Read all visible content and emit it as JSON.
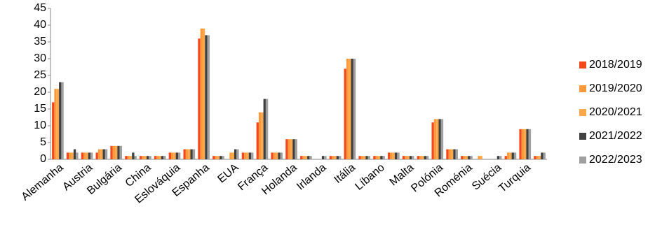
{
  "chart_data": {
    "type": "bar",
    "categories": [
      "Alemanha",
      null,
      "Austria",
      null,
      "Bulgária",
      null,
      "China",
      null,
      "Eslováquia",
      null,
      "Espanha",
      null,
      "EUA",
      null,
      "França",
      null,
      "Holanda",
      null,
      "Irlanda",
      null,
      "Itália",
      null,
      "Líbano",
      null,
      "Malta",
      null,
      "Polónia",
      null,
      "Roménia",
      null,
      "Suécia",
      null,
      "Turquia",
      null
    ],
    "series": [
      {
        "name": "2018/2019",
        "color": "#f4471b",
        "values": [
          17,
          2,
          2,
          2,
          4,
          1,
          1,
          1,
          2,
          3,
          36,
          1,
          0,
          2,
          11,
          2,
          6,
          1,
          0,
          1,
          27,
          1,
          1,
          2,
          1,
          1,
          11,
          3,
          1,
          0,
          0,
          1,
          9,
          1
        ]
      },
      {
        "name": "2019/2020",
        "color": "#ff9a3c",
        "values": [
          21,
          2,
          2,
          3,
          4,
          1,
          1,
          1,
          2,
          3,
          39,
          1,
          2,
          2,
          14,
          2,
          6,
          1,
          0,
          1,
          30,
          1,
          1,
          2,
          1,
          1,
          12,
          3,
          1,
          1,
          0,
          2,
          9,
          1
        ]
      },
      {
        "name": "2020/2021",
        "color": "#fba84a",
        "values": [
          21,
          2,
          2,
          3,
          4,
          1,
          1,
          1,
          2,
          3,
          39,
          1,
          2,
          2,
          14,
          2,
          6,
          1,
          0,
          1,
          30,
          1,
          1,
          2,
          1,
          1,
          12,
          3,
          1,
          1,
          0,
          2,
          9,
          1
        ]
      },
      {
        "name": "2021/2022",
        "color": "#404040",
        "values": [
          23,
          3,
          2,
          3,
          4,
          2,
          1,
          1,
          2,
          3,
          37,
          1,
          3,
          2,
          18,
          2,
          6,
          1,
          1,
          1,
          30,
          1,
          1,
          2,
          1,
          1,
          12,
          3,
          1,
          0,
          1,
          2,
          9,
          2
        ]
      },
      {
        "name": "2022/2023",
        "color": "#a0a0a0",
        "values": [
          23,
          2,
          2,
          3,
          4,
          1,
          1,
          1,
          2,
          3,
          37,
          1,
          3,
          2,
          18,
          2,
          6,
          1,
          1,
          1,
          30,
          1,
          1,
          2,
          1,
          1,
          12,
          3,
          1,
          0,
          1,
          2,
          9,
          2
        ]
      }
    ],
    "ylim": [
      0,
      45
    ],
    "yticks": [
      0,
      5,
      10,
      15,
      20,
      25,
      30,
      35,
      40,
      45
    ],
    "grid": false,
    "legend": "right"
  }
}
